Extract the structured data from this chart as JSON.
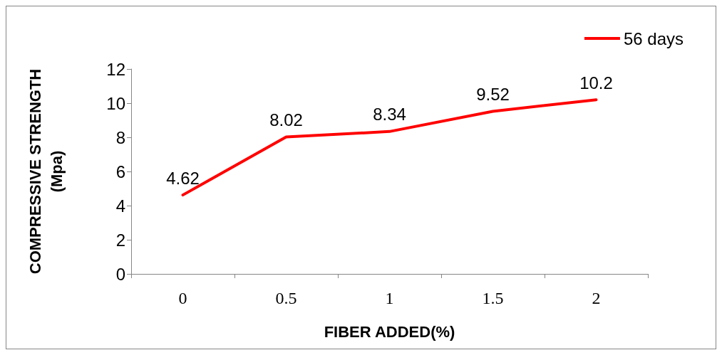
{
  "chart_data": {
    "type": "line",
    "xlabel": "FIBER ADDED(%)",
    "ylabel": "COMPRESSIVE STRENGTH\n(Mpa)",
    "categories": [
      "0",
      "0.5",
      "1",
      "1.5",
      "2"
    ],
    "series": [
      {
        "name": "56 days",
        "color": "#ff0000",
        "values": [
          4.62,
          8.02,
          8.34,
          9.52,
          10.2
        ]
      }
    ],
    "ylim": [
      0,
      12
    ],
    "yticks": [
      0,
      2,
      4,
      6,
      8,
      10,
      12
    ],
    "grid": false,
    "legend": "top right",
    "marker": "none",
    "line_style": "solid",
    "data_labels": true
  }
}
